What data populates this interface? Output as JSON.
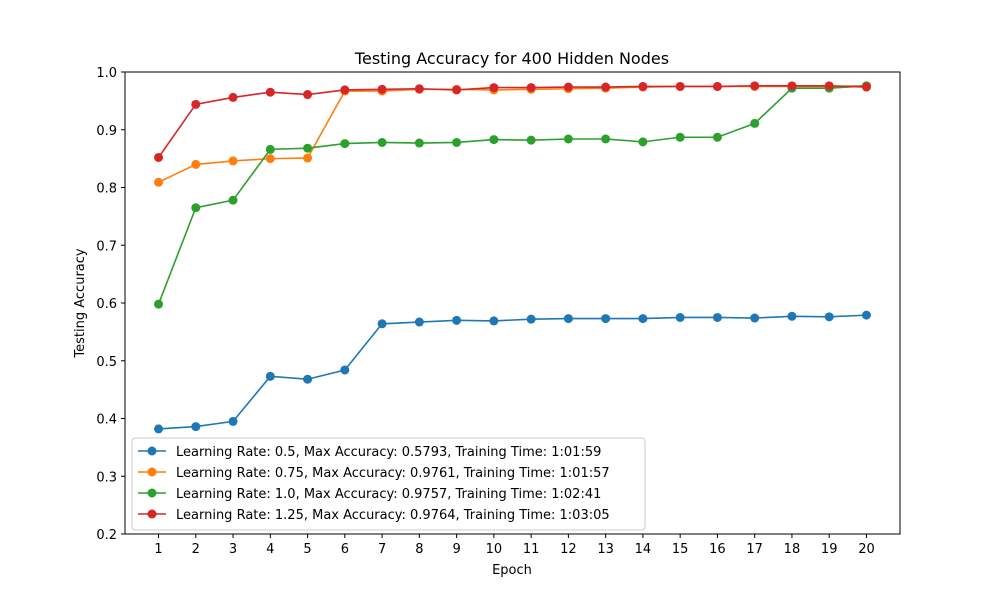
{
  "chart_data": {
    "type": "line",
    "title": "Testing Accuracy for 400 Hidden Nodes",
    "xlabel": "Epoch",
    "ylabel": "Testing Accuracy",
    "x": [
      1,
      2,
      3,
      4,
      5,
      6,
      7,
      8,
      9,
      10,
      11,
      12,
      13,
      14,
      15,
      16,
      17,
      18,
      19,
      20
    ],
    "xlim": [
      0.1,
      20.9
    ],
    "ylim": [
      0.2,
      1.0
    ],
    "yticks": [
      0.2,
      0.3,
      0.4,
      0.5,
      0.6,
      0.7,
      0.8,
      0.9,
      1.0
    ],
    "ytick_labels": [
      "0.2",
      "0.3",
      "0.4",
      "0.5",
      "0.6",
      "0.7",
      "0.8",
      "0.9",
      "1.0"
    ],
    "grid": false,
    "legend_position": "lower-left",
    "series": [
      {
        "name": "Learning Rate: 0.5, Max Accuracy: 0.5793, Training Time: 1:01:59",
        "color": "#1f77b4",
        "values": [
          0.382,
          0.386,
          0.395,
          0.473,
          0.468,
          0.484,
          0.564,
          0.567,
          0.57,
          0.569,
          0.572,
          0.573,
          0.573,
          0.573,
          0.575,
          0.575,
          0.574,
          0.577,
          0.576,
          0.579
        ]
      },
      {
        "name": "Learning Rate: 0.75, Max Accuracy: 0.9761, Training Time: 1:01:57",
        "color": "#ff7f0e",
        "values": [
          0.809,
          0.84,
          0.846,
          0.85,
          0.851,
          0.967,
          0.967,
          0.97,
          0.97,
          0.969,
          0.97,
          0.971,
          0.972,
          0.974,
          0.975,
          0.975,
          0.975,
          0.975,
          0.975,
          0.976
        ]
      },
      {
        "name": "Learning Rate: 1.0, Max Accuracy: 0.9757, Training Time: 1:02:41",
        "color": "#2ca02c",
        "values": [
          0.598,
          0.765,
          0.778,
          0.866,
          0.868,
          0.876,
          0.878,
          0.877,
          0.878,
          0.883,
          0.882,
          0.884,
          0.884,
          0.879,
          0.887,
          0.887,
          0.911,
          0.972,
          0.972,
          0.976
        ]
      },
      {
        "name": "Learning Rate: 1.25, Max Accuracy: 0.9764, Training Time: 1:03:05",
        "color": "#d62728",
        "values": [
          0.852,
          0.944,
          0.956,
          0.965,
          0.961,
          0.969,
          0.97,
          0.971,
          0.969,
          0.973,
          0.973,
          0.974,
          0.974,
          0.975,
          0.975,
          0.975,
          0.976,
          0.976,
          0.976,
          0.974
        ]
      }
    ]
  }
}
